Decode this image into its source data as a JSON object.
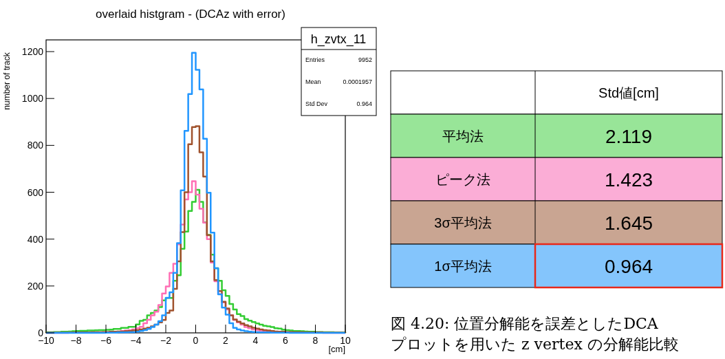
{
  "chart_data": [
    {
      "type": "histogram",
      "title": "overlaid histgram - (DCAz with error)",
      "xlabel": "[cm]",
      "ylabel": "number of track",
      "bins": [
        -10,
        -9.75,
        -9.5,
        -9.25,
        -9,
        -8.75,
        -8.5,
        -8.25,
        -8,
        -7.75,
        -7.5,
        -7.25,
        -7,
        -6.75,
        -6.5,
        -6.25,
        -6,
        -5.75,
        -5.5,
        -5.25,
        -5,
        -4.75,
        -4.5,
        -4.25,
        -4,
        -3.75,
        -3.5,
        -3.25,
        -3,
        -2.75,
        -2.5,
        -2.25,
        -2,
        -1.75,
        -1.5,
        -1.25,
        -1,
        -0.75,
        -0.5,
        -0.25,
        0,
        0.25,
        0.5,
        0.75,
        1,
        1.25,
        1.5,
        1.75,
        2,
        2.25,
        2.5,
        2.75,
        3,
        3.25,
        3.5,
        3.75,
        4,
        4.25,
        4.5,
        4.75,
        5,
        5.25,
        5.5,
        5.75,
        6,
        6.25,
        6.5,
        6.75,
        7,
        7.25,
        7.5,
        7.75,
        8,
        8.25,
        8.5,
        8.75,
        9,
        9.25,
        9.5,
        9.75,
        10
      ],
      "series": [
        {
          "color": "#33cc33",
          "values": [
            3,
            3,
            4,
            4,
            5,
            5,
            6,
            7,
            8,
            9,
            9,
            10,
            10,
            11,
            12,
            12,
            13,
            14,
            17,
            17,
            21,
            21,
            26,
            26,
            36,
            51,
            56,
            75,
            85,
            95,
            110,
            139,
            149,
            149,
            222,
            246,
            359,
            432,
            520,
            559,
            610,
            559,
            472,
            418,
            334,
            276,
            222,
            182,
            158,
            123,
            100,
            80,
            72,
            59,
            52,
            46,
            40,
            35,
            30,
            28,
            25,
            20,
            18,
            14,
            12,
            10,
            8,
            8,
            7,
            6,
            5,
            5,
            4,
            4,
            3,
            3,
            3,
            2,
            2,
            2
          ]
        },
        {
          "color": "#ff6eb4",
          "values": [
            0,
            0,
            0,
            0,
            0,
            0,
            1,
            1,
            1,
            1,
            1,
            1,
            2,
            2,
            2,
            2,
            3,
            3,
            4,
            5,
            8,
            10,
            12,
            15,
            20,
            26,
            41,
            56,
            75,
            90,
            119,
            168,
            198,
            256,
            295,
            378,
            462,
            569,
            600,
            647,
            590,
            530,
            470,
            400,
            300,
            220,
            165,
            130,
            100,
            75,
            55,
            45,
            35,
            25,
            20,
            15,
            12,
            10,
            8,
            6,
            5,
            4,
            3,
            3,
            2,
            2,
            2,
            1,
            1,
            1,
            1,
            1,
            1,
            1,
            0,
            0,
            0,
            0,
            0,
            0
          ]
        },
        {
          "color": "#a0522d",
          "values": [
            1,
            1,
            1,
            1,
            1,
            1,
            1,
            2,
            2,
            2,
            2,
            2,
            3,
            3,
            3,
            4,
            4,
            5,
            5,
            6,
            6,
            7,
            8,
            10,
            12,
            15,
            18,
            22,
            28,
            35,
            45,
            55,
            85,
            95,
            188,
            305,
            430,
            600,
            805,
            878,
            882,
            770,
            667,
            417,
            305,
            225,
            178,
            133,
            104,
            75,
            57,
            48,
            40,
            33,
            28,
            22,
            18,
            15,
            12,
            10,
            8,
            6,
            5,
            5,
            4,
            4,
            3,
            3,
            3,
            2,
            2,
            2,
            2,
            2,
            1,
            1,
            1,
            1,
            1,
            1
          ]
        },
        {
          "color": "#2196ff",
          "values": [
            0,
            0,
            0,
            0,
            0,
            0,
            0,
            0,
            0,
            0,
            0,
            0,
            0,
            0,
            0,
            0,
            1,
            1,
            1,
            2,
            2,
            2,
            3,
            3,
            5,
            8,
            12,
            17,
            25,
            35,
            50,
            75,
            150,
            173,
            256,
            383,
            608,
            862,
            1019,
            1195,
            1122,
            1039,
            828,
            598,
            428,
            276,
            164,
            108,
            78,
            41,
            21,
            15,
            10,
            7,
            5,
            4,
            3,
            2,
            2,
            2,
            1,
            1,
            1,
            1,
            1,
            0,
            0,
            0,
            0,
            0,
            0,
            0,
            0,
            0,
            0,
            0,
            0,
            0,
            0,
            0
          ]
        }
      ],
      "xlim": [
        -10,
        10
      ],
      "ylim": [
        0,
        1250
      ],
      "xticks": [
        -10,
        -8,
        -6,
        -4,
        -2,
        0,
        2,
        4,
        6,
        8,
        10
      ],
      "yticks": [
        0,
        200,
        400,
        600,
        800,
        1000,
        1200
      ],
      "annotations": [
        "h_zvtx_11",
        "Entries",
        "9952",
        "Mean",
        "0.0001957",
        "Std Dev",
        "0.964"
      ]
    },
    {
      "type": "other",
      "annotations": [
        "Std値[cm]",
        "平均法",
        "2.119",
        "ピーク法",
        "1.423",
        "3σ平均法",
        "1.645",
        "1σ平均法",
        "0.964",
        "図 4.20: 位置分解能を誤差としたDCA",
        "プロットを用いた z vertex の分解能比較"
      ]
    }
  ]
}
